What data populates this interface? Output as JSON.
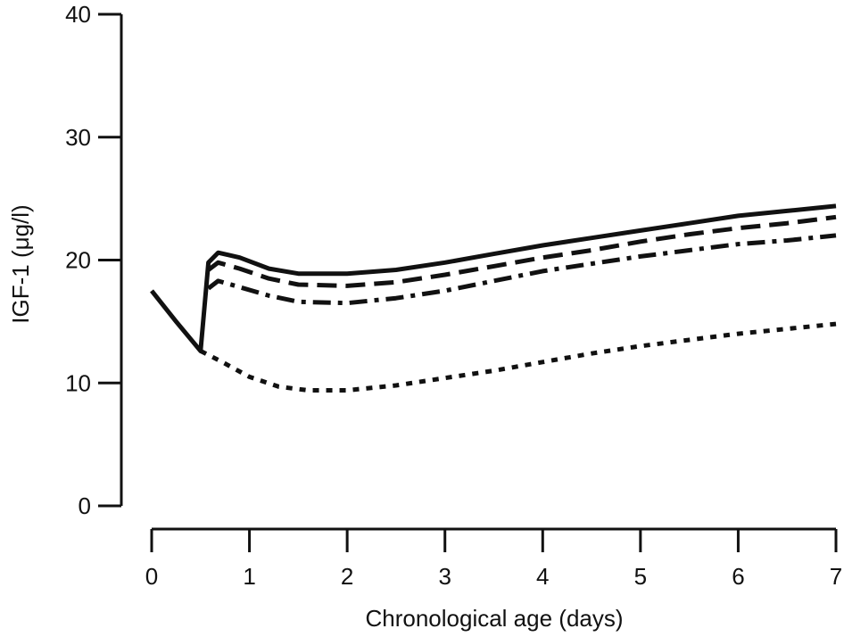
{
  "chart_data": {
    "type": "line",
    "title": "",
    "xlabel": "Chronological age (days)",
    "ylabel": "IGF-1 (μg/l)",
    "xlim": [
      0,
      7
    ],
    "ylim": [
      0,
      40
    ],
    "xticks": [
      "0",
      "1",
      "2",
      "3",
      "4",
      "5",
      "6",
      "7"
    ],
    "yticks": [
      "0",
      "10",
      "20",
      "30",
      "40"
    ],
    "grid": false,
    "legend": "none",
    "series": [
      {
        "style": "solid",
        "x": [
          0,
          0.25,
          0.5,
          0.58,
          0.68,
          0.9,
          1.2,
          1.5,
          2.0,
          2.5,
          3.0,
          3.5,
          4.0,
          4.5,
          5.0,
          5.5,
          6.0,
          6.5,
          7.0
        ],
        "y": [
          17.5,
          15.0,
          12.6,
          19.8,
          20.6,
          20.2,
          19.3,
          18.9,
          18.9,
          19.2,
          19.8,
          20.5,
          21.2,
          21.8,
          22.4,
          23.0,
          23.6,
          24.0,
          24.4
        ]
      },
      {
        "style": "dashed",
        "x": [
          0.58,
          0.68,
          0.9,
          1.2,
          1.5,
          2.0,
          2.5,
          3.0,
          3.5,
          4.0,
          4.5,
          5.0,
          5.5,
          6.0,
          6.5,
          7.0
        ],
        "y": [
          19.2,
          19.8,
          19.3,
          18.5,
          18.0,
          17.9,
          18.2,
          18.8,
          19.5,
          20.2,
          20.8,
          21.5,
          22.1,
          22.6,
          23.0,
          23.5
        ]
      },
      {
        "style": "dash-dot",
        "x": [
          0.58,
          0.68,
          0.9,
          1.2,
          1.5,
          2.0,
          2.5,
          3.0,
          3.5,
          4.0,
          4.5,
          5.0,
          5.5,
          6.0,
          6.5,
          7.0
        ],
        "y": [
          17.7,
          18.3,
          17.8,
          17.1,
          16.6,
          16.5,
          16.9,
          17.5,
          18.3,
          19.1,
          19.7,
          20.3,
          20.8,
          21.3,
          21.6,
          22.0
        ]
      },
      {
        "style": "dotted",
        "x": [
          0.5,
          0.7,
          1.0,
          1.3,
          1.6,
          2.0,
          2.5,
          3.0,
          3.5,
          4.0,
          4.5,
          5.0,
          5.5,
          6.0,
          6.5,
          7.0
        ],
        "y": [
          12.6,
          11.8,
          10.5,
          9.7,
          9.4,
          9.4,
          9.8,
          10.4,
          11.0,
          11.7,
          12.4,
          13.0,
          13.5,
          14.0,
          14.4,
          14.8
        ]
      }
    ]
  }
}
